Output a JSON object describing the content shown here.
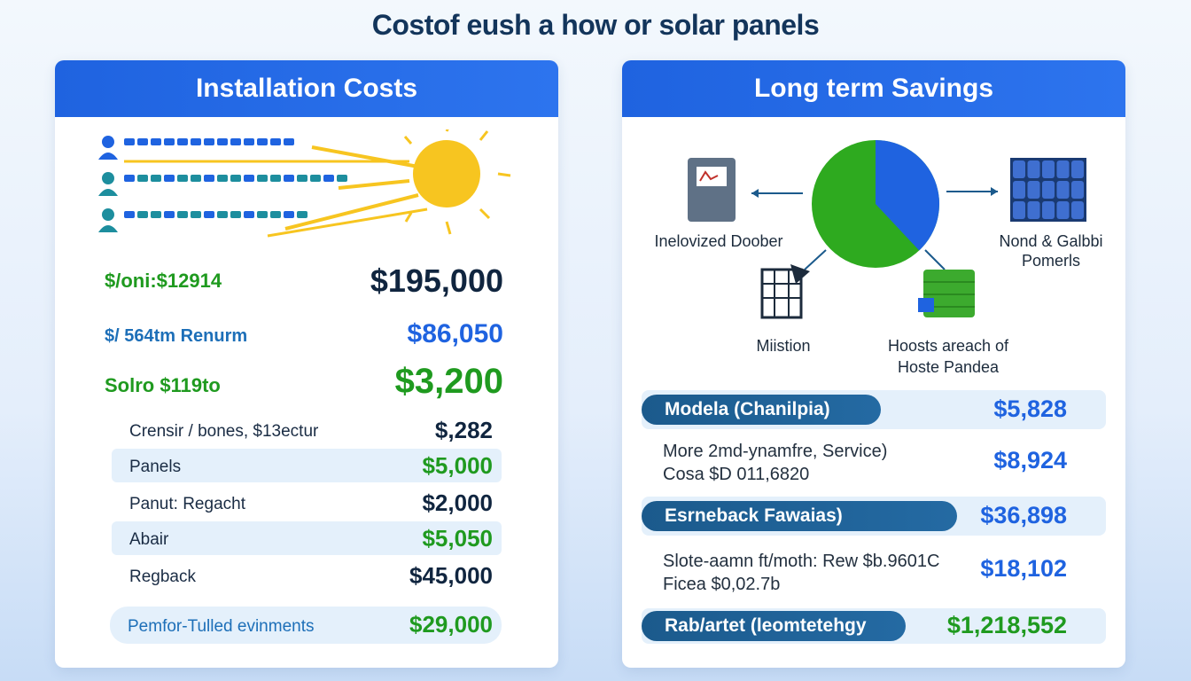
{
  "page": {
    "title": "Costof eush a how or solar panels"
  },
  "installation": {
    "header": "Installation Costs",
    "big_rows": [
      {
        "label": "$/oni:$12914",
        "value": "$195,000"
      },
      {
        "label": "$/ 564tm Renurm",
        "value": "$86,050"
      },
      {
        "label": "Solro $119to",
        "value": "$3,200"
      }
    ],
    "cost_rows": [
      {
        "label": "Crensir / bones, $13ectur",
        "value": "$,282"
      },
      {
        "label": "Panels",
        "value": "$5,000"
      },
      {
        "label": "Panut: Regacht",
        "value": "$2,000"
      },
      {
        "label": "Abair",
        "value": "$5,050"
      },
      {
        "label": "Regback",
        "value": "$45,000"
      }
    ],
    "footer_row": {
      "label": "Pemfor-Tulled evinments",
      "value": "$29,000"
    },
    "colors": {
      "sun": "#f7c520",
      "bar_blue": "#1f63e0",
      "bar_teal": "#1d8e9e"
    }
  },
  "savings": {
    "header": "Long term Savings",
    "diagram": {
      "left_label": "Inelovized Doober",
      "right_label_1": "Nond & Galbbi",
      "right_label_2": "Pomerls",
      "bottom_left_label": "Miistion",
      "bottom_right_label_1": "Hoosts areach of",
      "bottom_right_label_2": "Hoste Pandea",
      "pie": {
        "blue_share": 0.38,
        "green_share": 0.62,
        "blue": "#1f63e0",
        "green": "#2eaa1f"
      }
    },
    "rows": [
      {
        "pill": "Modela (Chanilpia)",
        "value": "$5,828"
      },
      {
        "line1": "More 2md-ynamfre, Service)",
        "line2": "Cosa $D 011,6820",
        "value": "$8,924"
      },
      {
        "pill": "Esrneback Fawaias)",
        "value": "$36,898"
      },
      {
        "line1": "Slote-aamn ft/moth: Rew $b.9601C",
        "line2": "Ficea $0,02.7b",
        "value": "$18,102"
      },
      {
        "pill": "Rab/artet (leomtetehgy",
        "value": "$1,218,552"
      }
    ]
  }
}
